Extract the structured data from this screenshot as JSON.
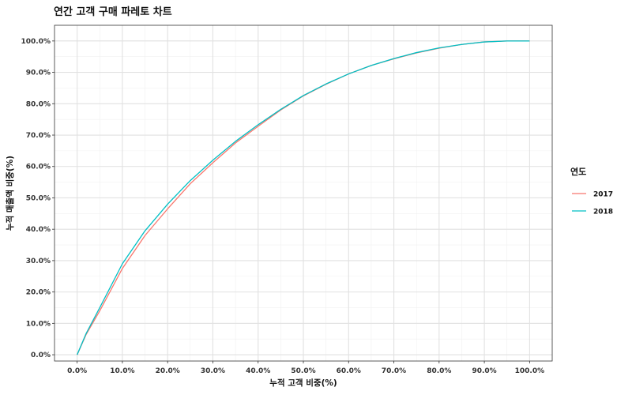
{
  "chart_data": {
    "type": "line",
    "title": "연간 고객 구매 파레토 차트",
    "xlabel": "누적 고객 비중(%)",
    "ylabel": "누적 매출액 비중(%)",
    "xlim": [
      -0.05,
      1.05
    ],
    "ylim": [
      -0.02,
      1.05
    ],
    "x_ticks": [
      0,
      0.1,
      0.2,
      0.3,
      0.4,
      0.5,
      0.6,
      0.7,
      0.8,
      0.9,
      1.0
    ],
    "x_tick_labels": [
      "0.0%",
      "10.0%",
      "20.0%",
      "30.0%",
      "40.0%",
      "50.0%",
      "60.0%",
      "70.0%",
      "80.0%",
      "90.0%",
      "100.0%"
    ],
    "y_ticks": [
      0,
      0.1,
      0.2,
      0.3,
      0.4,
      0.5,
      0.6,
      0.7,
      0.8,
      0.9,
      1.0
    ],
    "y_tick_labels": [
      "0.0%",
      "10.0%",
      "20.0%",
      "30.0%",
      "40.0%",
      "50.0%",
      "60.0%",
      "70.0%",
      "80.0%",
      "90.0%",
      "100.0%"
    ],
    "grid": true,
    "legend": {
      "title": "연도",
      "position": "right"
    },
    "series": [
      {
        "name": "2017",
        "color": "#F8766D",
        "x": [
          0,
          0.02,
          0.05,
          0.1,
          0.15,
          0.2,
          0.25,
          0.3,
          0.35,
          0.4,
          0.45,
          0.5,
          0.55,
          0.6,
          0.65,
          0.7,
          0.75,
          0.8,
          0.85,
          0.9,
          0.95,
          1.0
        ],
        "y": [
          0.0,
          0.065,
          0.14,
          0.275,
          0.38,
          0.465,
          0.545,
          0.612,
          0.675,
          0.728,
          0.78,
          0.825,
          0.862,
          0.895,
          0.922,
          0.943,
          0.962,
          0.977,
          0.989,
          0.997,
          1.0,
          1.0
        ]
      },
      {
        "name": "2018",
        "color": "#00BFC4",
        "x": [
          0,
          0.02,
          0.05,
          0.1,
          0.15,
          0.2,
          0.25,
          0.3,
          0.35,
          0.4,
          0.45,
          0.5,
          0.55,
          0.6,
          0.65,
          0.7,
          0.75,
          0.8,
          0.85,
          0.9,
          0.95,
          1.0
        ],
        "y": [
          0.0,
          0.068,
          0.15,
          0.29,
          0.395,
          0.48,
          0.555,
          0.62,
          0.68,
          0.733,
          0.782,
          0.826,
          0.863,
          0.895,
          0.922,
          0.944,
          0.963,
          0.978,
          0.989,
          0.997,
          1.0,
          1.0
        ]
      }
    ]
  }
}
